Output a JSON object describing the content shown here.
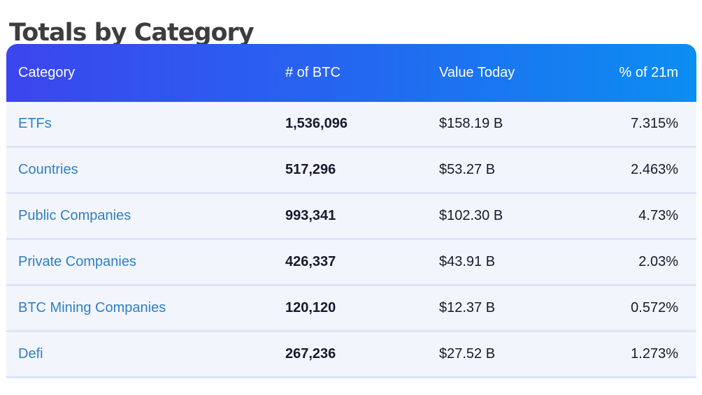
{
  "page": {
    "title": "Totals by Category"
  },
  "colors": {
    "header_gradient_start": "#3c45ee",
    "header_gradient_end": "#0b8ef2",
    "header_text": "#ffffff",
    "row_background": "#f3f5fd",
    "row_separator": "#dde3f8",
    "category_link": "#2d80c4",
    "value_text": "#151a2e",
    "title_text": "#3d3d3d"
  },
  "table": {
    "columns": [
      {
        "label": "Category",
        "align": "left"
      },
      {
        "label": "# of BTC",
        "align": "left"
      },
      {
        "label": "Value Today",
        "align": "left"
      },
      {
        "label": "% of 21m",
        "align": "right"
      }
    ],
    "rows": [
      {
        "category": "ETFs",
        "btc": "1,536,096",
        "value_today": "$158.19 B",
        "pct_of_21m": "7.315%"
      },
      {
        "category": "Countries",
        "btc": "517,296",
        "value_today": "$53.27 B",
        "pct_of_21m": "2.463%"
      },
      {
        "category": "Public Companies",
        "btc": "993,341",
        "value_today": "$102.30 B",
        "pct_of_21m": "4.73%"
      },
      {
        "category": "Private Companies",
        "btc": "426,337",
        "value_today": "$43.91 B",
        "pct_of_21m": "2.03%"
      },
      {
        "category": "BTC Mining Companies",
        "btc": "120,120",
        "value_today": "$12.37 B",
        "pct_of_21m": "0.572%"
      },
      {
        "category": "Defi",
        "btc": "267,236",
        "value_today": "$27.52 B",
        "pct_of_21m": "1.273%"
      }
    ]
  }
}
